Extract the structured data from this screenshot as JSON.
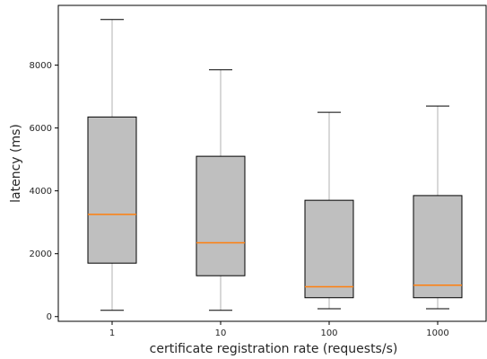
{
  "chart_data": {
    "type": "boxplot",
    "title": "",
    "xlabel": "certificate registration rate (requests/s)",
    "ylabel": "latency (ms)",
    "categories": [
      "1",
      "10",
      "100",
      "1000"
    ],
    "ylim": [
      -150,
      9900
    ],
    "yticks": [
      0,
      2000,
      4000,
      6000,
      8000
    ],
    "ytick_labels": [
      "0",
      "2000",
      "4000",
      "6000",
      "8000"
    ],
    "grid": false,
    "legend": "none",
    "boxes": [
      {
        "category": "1",
        "whisker_low": 200,
        "q1": 1700,
        "median": 3250,
        "q3": 6350,
        "whisker_high": 9450
      },
      {
        "category": "10",
        "whisker_low": 200,
        "q1": 1300,
        "median": 2350,
        "q3": 5100,
        "whisker_high": 7850
      },
      {
        "category": "100",
        "whisker_low": 250,
        "q1": 600,
        "median": 950,
        "q3": 3700,
        "whisker_high": 6500
      },
      {
        "category": "1000",
        "whisker_low": 250,
        "q1": 600,
        "median": 1000,
        "q3": 3850,
        "whisker_high": 6700
      }
    ],
    "colors": {
      "box_fill": "#bfbfbf",
      "box_edge": "#000000",
      "median": "#ff7f0e",
      "whisker": "#b0b0b0",
      "cap": "#000000",
      "axis": "#000000"
    }
  }
}
